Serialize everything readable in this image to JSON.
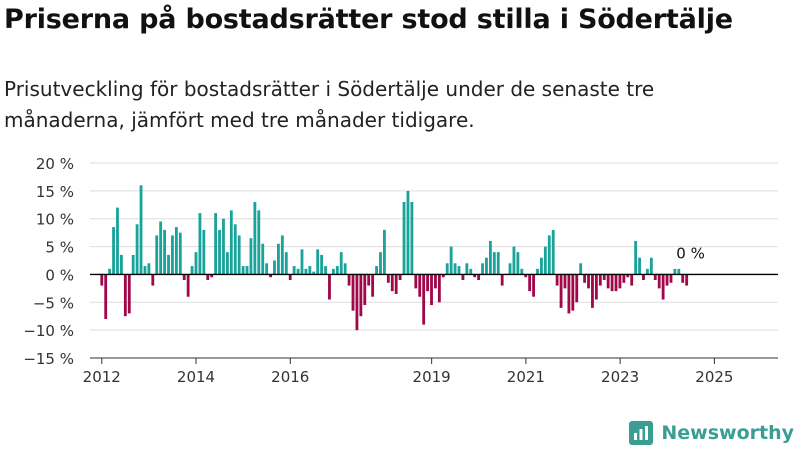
{
  "title": "Priserna på bostadsrätter stod stilla i Södertälje",
  "subtitle": "Prisutveckling för bostadsrätter i Södertälje under de senaste tre månaderna, jämfört med tre månader tidigare.",
  "brand": {
    "name": "Newsworthy",
    "icon": "newsworthy-logo-icon",
    "color": "#3b9e95"
  },
  "colors": {
    "positive": "#1aa39a",
    "negative": "#a0084a",
    "grid": "#dddddd",
    "axis": "#333333",
    "text": "#333333"
  },
  "chart_data": {
    "type": "bar",
    "xlabel": "",
    "ylabel": "",
    "ylim": [
      -15,
      20
    ],
    "yticks": [
      20,
      15,
      10,
      5,
      0,
      -5,
      -10,
      -15
    ],
    "ytick_labels": [
      "20 %",
      "15 %",
      "10 %",
      "5 %",
      "0 %",
      "−5 %",
      "−10 %",
      "−15 %"
    ],
    "xlim": [
      2011.75,
      2026.35
    ],
    "xticks": [
      2012,
      2014,
      2016,
      2019,
      2021,
      2023,
      2025
    ],
    "xtick_labels": [
      "2012",
      "2014",
      "2016",
      "2019",
      "2021",
      "2023",
      "2025"
    ],
    "grid": true,
    "annotation": {
      "text": "0 %",
      "at": "last value"
    },
    "x_start": 2012.0,
    "x_step": 0.0833,
    "values": [
      -2,
      -8,
      1,
      8.5,
      12,
      3.5,
      -7.5,
      -7,
      3.5,
      9,
      16,
      1.5,
      2,
      -2,
      7,
      9.5,
      8,
      3.5,
      7,
      8.5,
      7.5,
      -1,
      -4,
      1.5,
      4,
      11,
      8,
      -1,
      -0.5,
      11,
      8,
      10,
      4,
      11.5,
      9,
      7,
      1.5,
      1.5,
      6.5,
      13,
      11.5,
      5.5,
      2,
      -0.5,
      2.5,
      5.5,
      7,
      4,
      -1,
      1.5,
      1,
      4.5,
      1,
      1.5,
      0.5,
      4.5,
      3.5,
      1.5,
      -4.5,
      1,
      1.5,
      4,
      2,
      -2,
      -6.5,
      -10,
      -7.5,
      -5.5,
      -2,
      -4,
      1.5,
      4,
      8,
      -1.5,
      -3,
      -3.5,
      -1,
      13,
      15,
      13,
      -2.5,
      -4,
      -9,
      -3,
      -5.5,
      -2.5,
      -5,
      -0.5,
      2,
      5,
      2,
      1.5,
      -1,
      2,
      1,
      -0.5,
      -1,
      2,
      3,
      6,
      4,
      4,
      -2,
      0,
      2,
      5,
      4,
      1,
      -0.5,
      -3,
      -4,
      1,
      3,
      5,
      7,
      8,
      -2,
      -6,
      -2.5,
      -7,
      -6.5,
      -5,
      2,
      -1.5,
      -2.5,
      -6,
      -4.5,
      -2,
      -1,
      -2.5,
      -3,
      -3,
      -2.5,
      -1.5,
      -0.5,
      -2,
      6,
      3,
      -1,
      1,
      3,
      -1,
      -2.5,
      -4.5,
      -2,
      -1.5,
      1,
      1,
      -1.5,
      -2,
      0
    ]
  }
}
